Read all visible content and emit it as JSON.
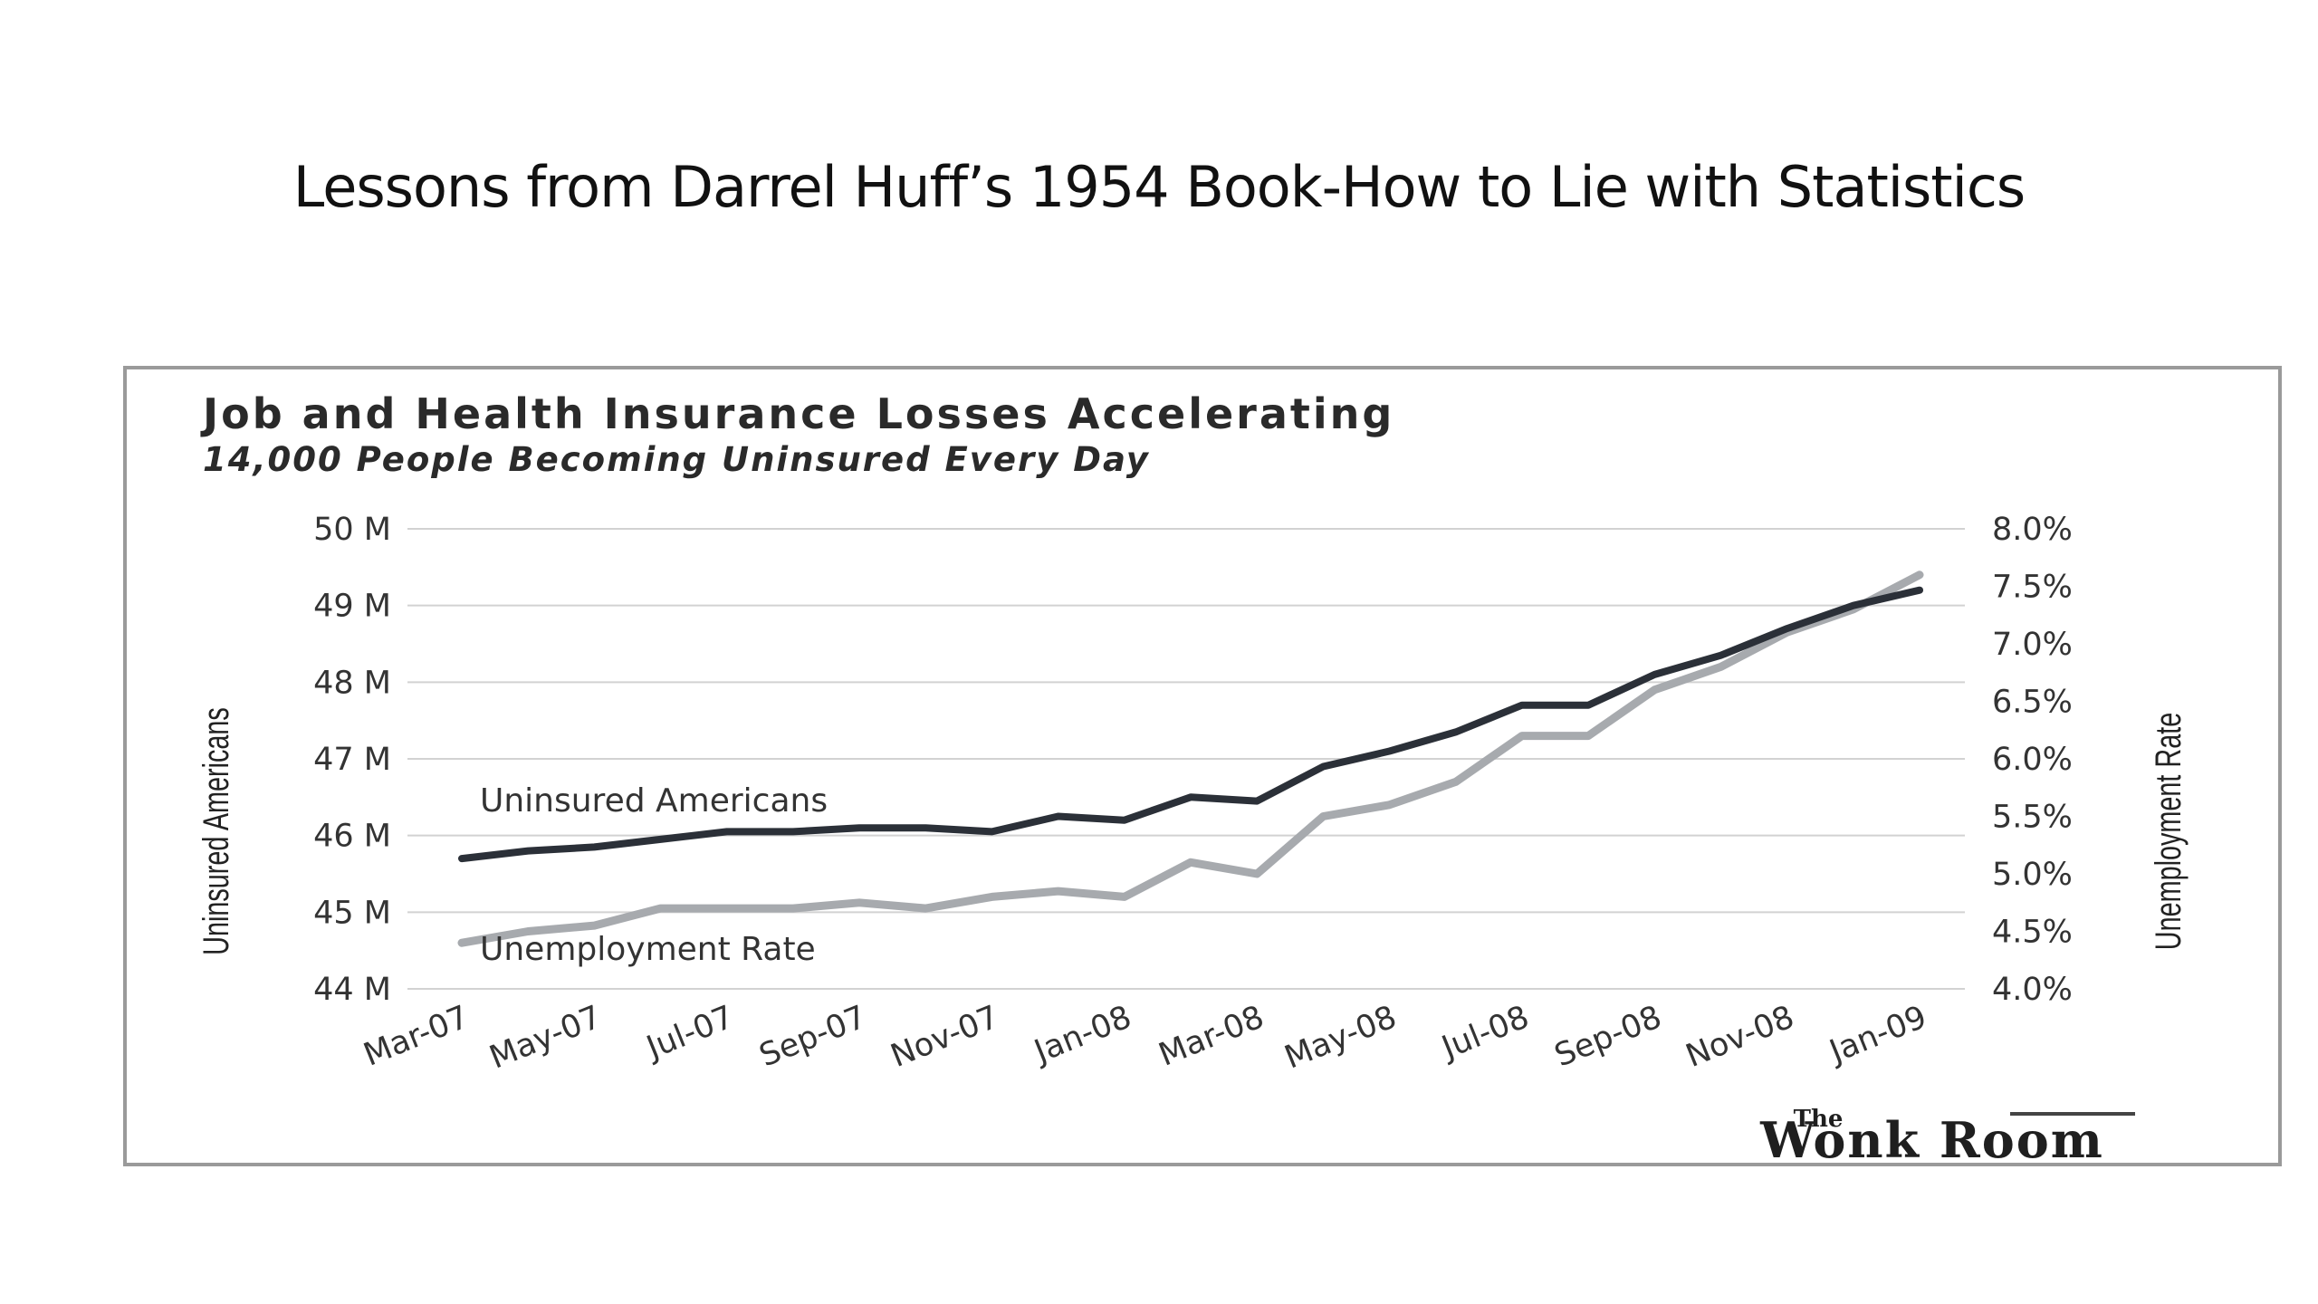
{
  "slide": {
    "title": "Lessons from Darrel Huff’s 1954 Book-How to Lie with Statistics"
  },
  "chart_data": {
    "type": "line",
    "title": "Job and Health Insurance Losses Accelerating",
    "subtitle": "14,000 People Becoming Uninsured Every Day",
    "ylabel": "Uninsured Americans",
    "y2label": "Unemployment Rate",
    "ylim": [
      44,
      50
    ],
    "y2lim": [
      4.0,
      8.0
    ],
    "yticks": [
      "50 M",
      "49 M",
      "48 M",
      "47 M",
      "46 M",
      "45 M",
      "44 M"
    ],
    "y2ticks": [
      "8.0%",
      "7.5%",
      "7.0%",
      "6.5%",
      "6.0%",
      "5.5%",
      "5.0%",
      "4.5%",
      "4.0%"
    ],
    "x": [
      "Mar-07",
      "Apr-07",
      "May-07",
      "Jun-07",
      "Jul-07",
      "Aug-07",
      "Sep-07",
      "Oct-07",
      "Nov-07",
      "Dec-07",
      "Jan-08",
      "Feb-08",
      "Mar-08",
      "Apr-08",
      "May-08",
      "Jun-08",
      "Jul-08",
      "Aug-08",
      "Sep-08",
      "Oct-08",
      "Nov-08",
      "Dec-08",
      "Jan-09"
    ],
    "xticks": [
      "Mar-07",
      "May-07",
      "Jul-07",
      "Sep-07",
      "Nov-07",
      "Jan-08",
      "Mar-08",
      "May-08",
      "Jul-08",
      "Sep-08",
      "Nov-08",
      "Jan-09"
    ],
    "grid": true,
    "series": [
      {
        "name": "Uninsured Americans",
        "axis": "left",
        "color": "#2b3038",
        "values": [
          45.7,
          45.8,
          45.85,
          45.95,
          46.05,
          46.05,
          46.1,
          46.1,
          46.05,
          46.25,
          46.2,
          46.5,
          46.45,
          46.9,
          47.1,
          47.35,
          47.7,
          47.7,
          48.1,
          48.35,
          48.7,
          49.0,
          49.2
        ]
      },
      {
        "name": "Unemployment Rate",
        "axis": "right",
        "color": "#a7aaae",
        "values": [
          4.4,
          4.5,
          4.55,
          4.7,
          4.7,
          4.7,
          4.75,
          4.7,
          4.8,
          4.85,
          4.8,
          5.1,
          5.0,
          5.5,
          5.6,
          5.8,
          6.2,
          6.2,
          6.6,
          6.8,
          7.1,
          7.3,
          7.6
        ]
      }
    ],
    "annotations": {
      "uninsured_label": "Uninsured Americans",
      "unemployment_label": "Unemployment Rate"
    },
    "logo": "The Wonk Room"
  }
}
